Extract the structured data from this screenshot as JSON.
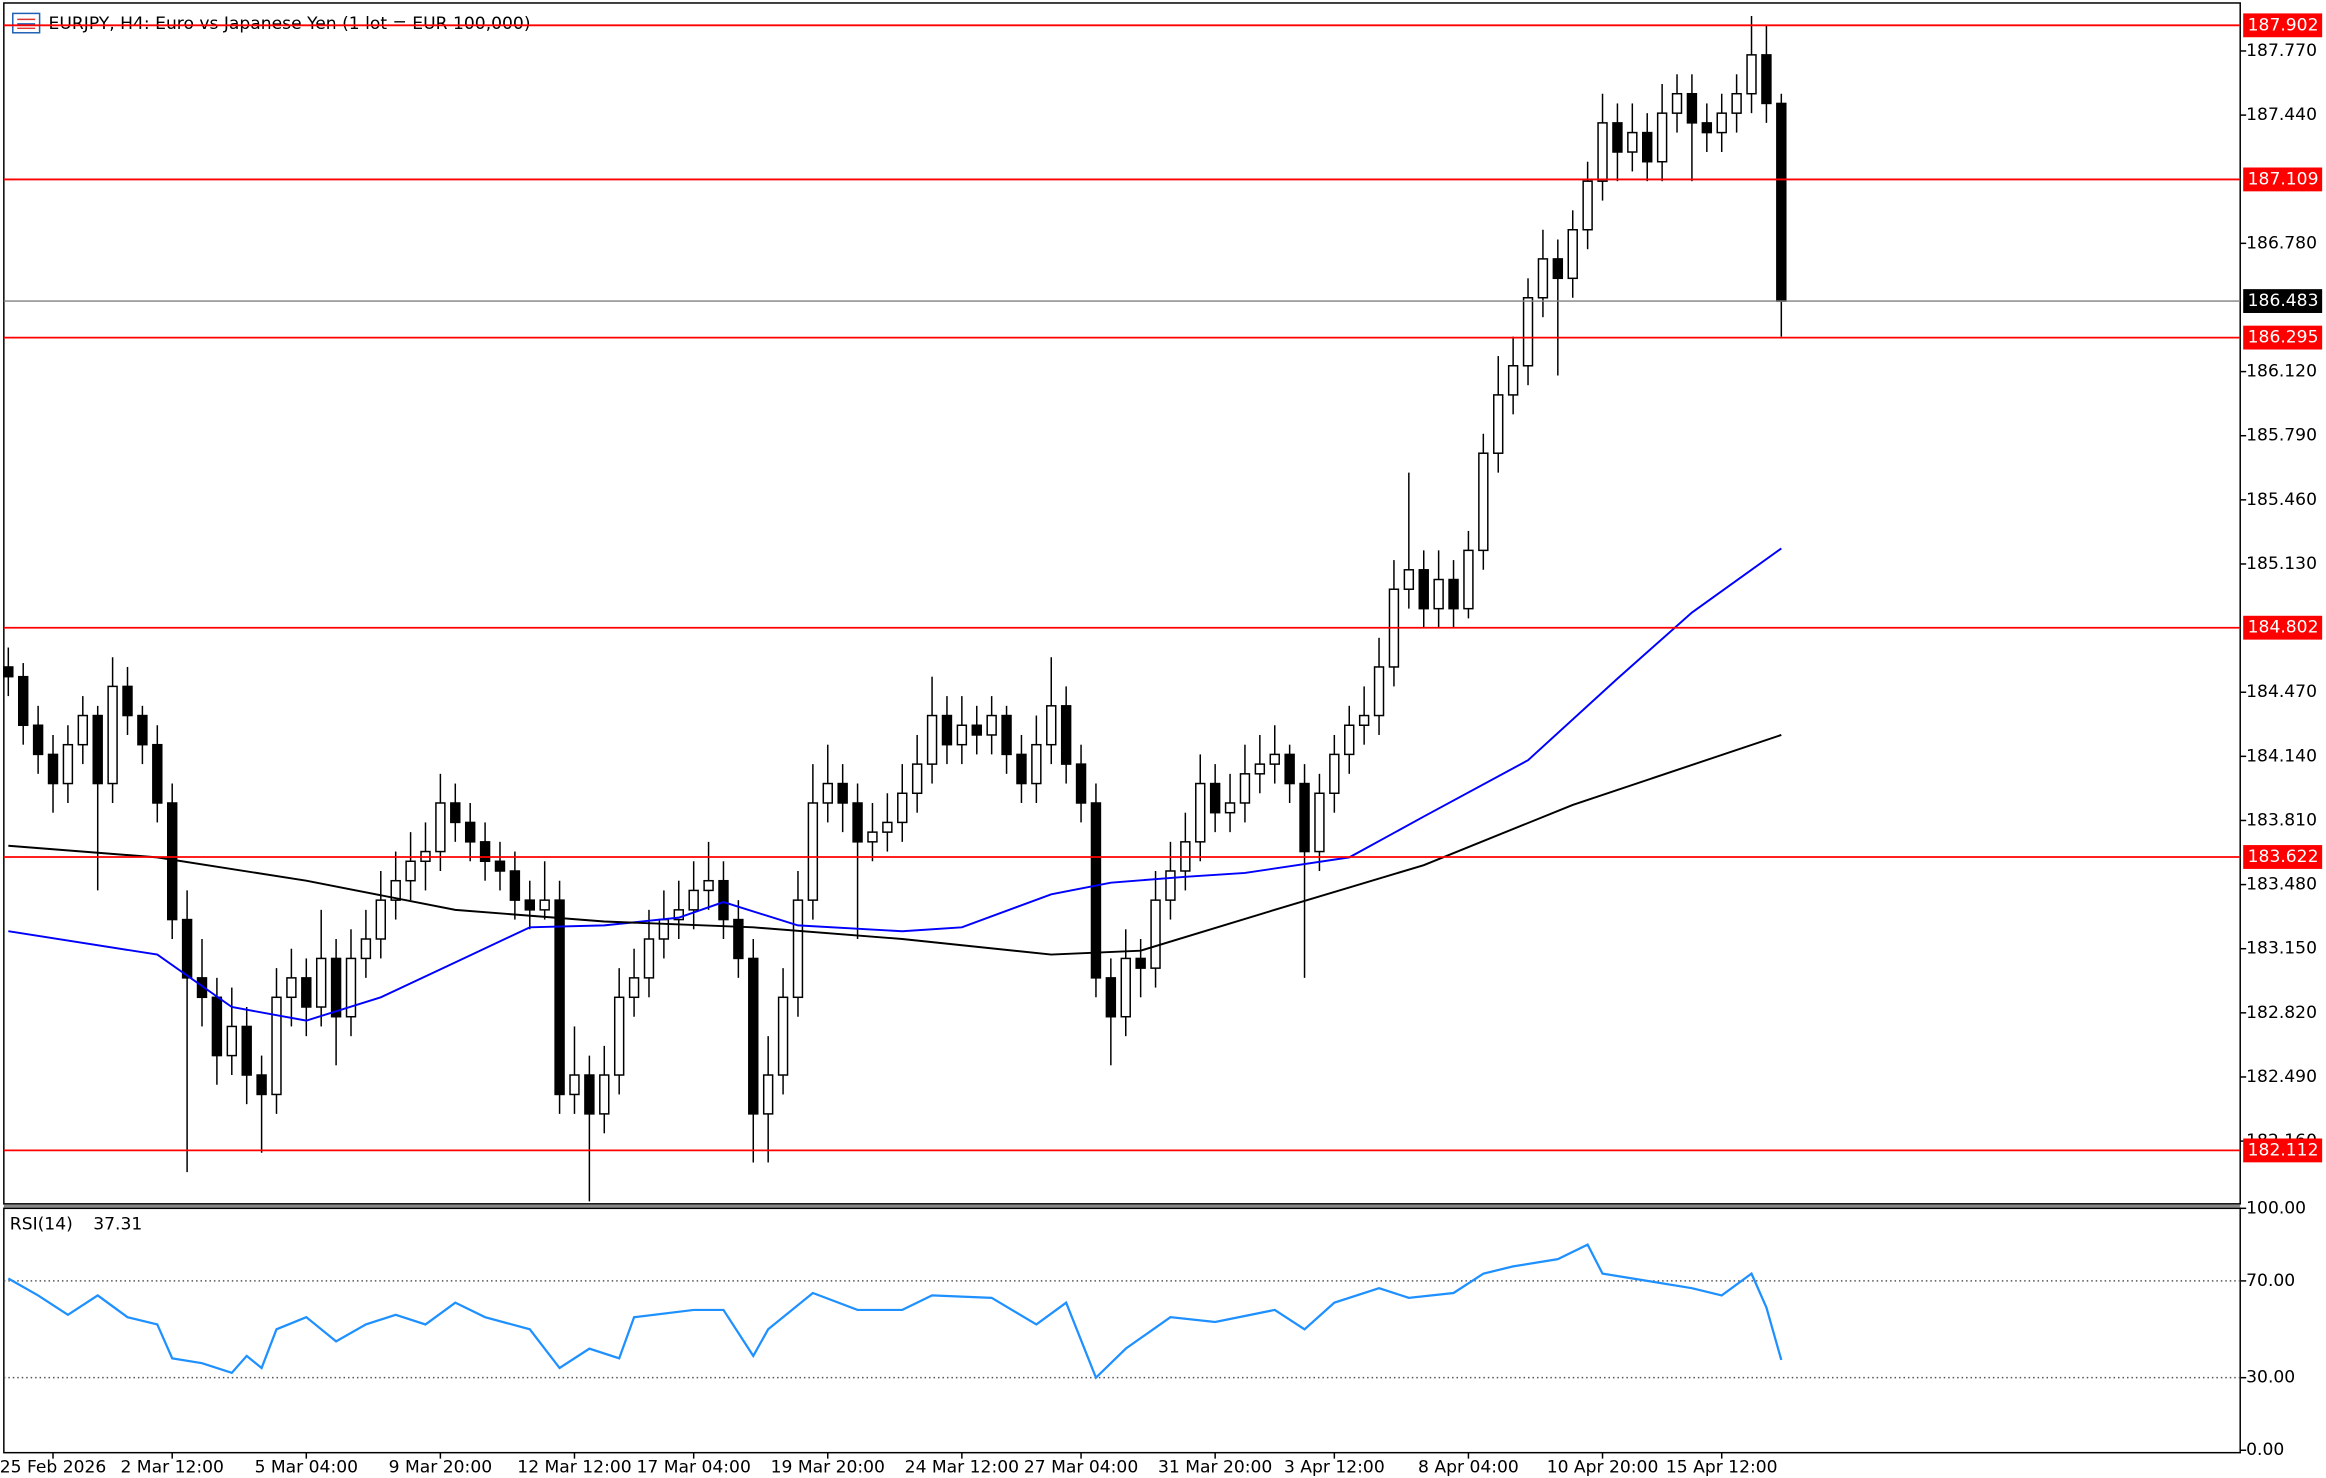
{
  "chart_data": [
    {
      "type": "candlestick",
      "title": "EURJPY, H4:  Euro vs Japanese Yen (1 lot = EUR 100,000)",
      "ylim": [
        181.837,
        188.017
      ],
      "yticks": [
        {
          "value": 187.77,
          "label": "187.770"
        },
        {
          "value": 187.44,
          "label": "187.440"
        },
        {
          "value": 186.78,
          "label": "186.780"
        },
        {
          "value": 186.12,
          "label": "186.120"
        },
        {
          "value": 185.79,
          "label": "185.790"
        },
        {
          "value": 185.46,
          "label": "185.460"
        },
        {
          "value": 185.13,
          "label": "185.130"
        },
        {
          "value": 184.47,
          "label": "184.470"
        },
        {
          "value": 184.14,
          "label": "184.140"
        },
        {
          "value": 183.81,
          "label": "183.810"
        },
        {
          "value": 183.48,
          "label": "183.480"
        },
        {
          "value": 183.15,
          "label": "183.150"
        },
        {
          "value": 182.82,
          "label": "182.820"
        },
        {
          "value": 182.49,
          "label": "182.490"
        },
        {
          "value": 182.16,
          "label": "182.160"
        }
      ],
      "xticks": [
        {
          "value": 3,
          "label": "25 Feb 2026"
        },
        {
          "value": 11,
          "label": "2 Mar 12:00"
        },
        {
          "value": 20,
          "label": "5 Mar 04:00"
        },
        {
          "value": 29,
          "label": "9 Mar 20:00"
        },
        {
          "value": 38,
          "label": "12 Mar 12:00"
        },
        {
          "value": 46,
          "label": "17 Mar 04:00"
        },
        {
          "value": 55,
          "label": "19 Mar 20:00"
        },
        {
          "value": 64,
          "label": "24 Mar 12:00"
        },
        {
          "value": 72,
          "label": "27 Mar 04:00"
        },
        {
          "value": 81,
          "label": "31 Mar 20:00"
        },
        {
          "value": 89,
          "label": "3 Apr 12:00"
        },
        {
          "value": 98,
          "label": "8 Apr 04:00"
        },
        {
          "value": 107,
          "label": "10 Apr 20:00"
        },
        {
          "value": 115,
          "label": "15 Apr 12:00"
        }
      ],
      "up_color": "#ffffff",
      "down_color": "#000000",
      "candles": [
        [
          184.6,
          184.7,
          184.45,
          184.55
        ],
        [
          184.55,
          184.62,
          184.2,
          184.3
        ],
        [
          184.3,
          184.4,
          184.05,
          184.15
        ],
        [
          184.15,
          184.25,
          183.85,
          184.0
        ],
        [
          184.0,
          184.3,
          183.9,
          184.2
        ],
        [
          184.2,
          184.45,
          184.1,
          184.35
        ],
        [
          184.35,
          184.4,
          183.45,
          184.0
        ],
        [
          184.0,
          184.65,
          183.9,
          184.5
        ],
        [
          184.5,
          184.6,
          184.25,
          184.35
        ],
        [
          184.35,
          184.4,
          184.1,
          184.2
        ],
        [
          184.2,
          184.3,
          183.8,
          183.9
        ],
        [
          183.9,
          184.0,
          183.2,
          183.3
        ],
        [
          183.3,
          183.45,
          182.0,
          183.0
        ],
        [
          183.0,
          183.2,
          182.75,
          182.9
        ],
        [
          182.9,
          183.0,
          182.45,
          182.6
        ],
        [
          182.6,
          182.95,
          182.5,
          182.75
        ],
        [
          182.75,
          182.85,
          182.35,
          182.5
        ],
        [
          182.5,
          182.6,
          182.1,
          182.4
        ],
        [
          182.4,
          183.05,
          182.3,
          182.9
        ],
        [
          182.9,
          183.15,
          182.75,
          183.0
        ],
        [
          183.0,
          183.1,
          182.7,
          182.85
        ],
        [
          182.85,
          183.35,
          182.75,
          183.1
        ],
        [
          183.1,
          183.2,
          182.55,
          182.8
        ],
        [
          182.8,
          183.25,
          182.7,
          183.1
        ],
        [
          183.1,
          183.35,
          183.0,
          183.2
        ],
        [
          183.2,
          183.55,
          183.1,
          183.4
        ],
        [
          183.4,
          183.65,
          183.3,
          183.5
        ],
        [
          183.5,
          183.75,
          183.4,
          183.6
        ],
        [
          183.6,
          183.8,
          183.45,
          183.65
        ],
        [
          183.65,
          184.05,
          183.55,
          183.9
        ],
        [
          183.9,
          184.0,
          183.7,
          183.8
        ],
        [
          183.8,
          183.9,
          183.6,
          183.7
        ],
        [
          183.7,
          183.8,
          183.5,
          183.6
        ],
        [
          183.6,
          183.7,
          183.45,
          183.55
        ],
        [
          183.55,
          183.65,
          183.3,
          183.4
        ],
        [
          183.4,
          183.5,
          183.25,
          183.35
        ],
        [
          183.35,
          183.6,
          183.3,
          183.4
        ],
        [
          183.4,
          183.5,
          182.3,
          182.4
        ],
        [
          182.4,
          182.75,
          182.3,
          182.5
        ],
        [
          182.5,
          182.6,
          181.85,
          182.3
        ],
        [
          182.3,
          182.65,
          182.2,
          182.5
        ],
        [
          182.5,
          183.05,
          182.4,
          182.9
        ],
        [
          182.9,
          183.15,
          182.8,
          183.0
        ],
        [
          183.0,
          183.35,
          182.9,
          183.2
        ],
        [
          183.2,
          183.45,
          183.1,
          183.3
        ],
        [
          183.3,
          183.5,
          183.2,
          183.35
        ],
        [
          183.35,
          183.6,
          183.25,
          183.45
        ],
        [
          183.45,
          183.7,
          183.35,
          183.5
        ],
        [
          183.5,
          183.6,
          183.2,
          183.3
        ],
        [
          183.3,
          183.4,
          183.0,
          183.1
        ],
        [
          183.1,
          183.2,
          182.05,
          182.3
        ],
        [
          182.3,
          182.7,
          182.05,
          182.5
        ],
        [
          182.5,
          183.05,
          182.4,
          182.9
        ],
        [
          182.9,
          183.55,
          182.8,
          183.4
        ],
        [
          183.4,
          184.1,
          183.3,
          183.9
        ],
        [
          183.9,
          184.2,
          183.8,
          184.0
        ],
        [
          184.0,
          184.1,
          183.75,
          183.9
        ],
        [
          183.9,
          184.0,
          183.2,
          183.7
        ],
        [
          183.7,
          183.9,
          183.6,
          183.75
        ],
        [
          183.75,
          183.95,
          183.65,
          183.8
        ],
        [
          183.8,
          184.1,
          183.7,
          183.95
        ],
        [
          183.95,
          184.25,
          183.85,
          184.1
        ],
        [
          184.1,
          184.55,
          184.0,
          184.35
        ],
        [
          184.35,
          184.45,
          184.1,
          184.2
        ],
        [
          184.2,
          184.45,
          184.1,
          184.3
        ],
        [
          184.3,
          184.4,
          184.15,
          184.25
        ],
        [
          184.25,
          184.45,
          184.15,
          184.35
        ],
        [
          184.35,
          184.4,
          184.05,
          184.15
        ],
        [
          184.15,
          184.25,
          183.9,
          184.0
        ],
        [
          184.0,
          184.35,
          183.9,
          184.2
        ],
        [
          184.2,
          184.65,
          184.1,
          184.4
        ],
        [
          184.4,
          184.5,
          184.0,
          184.1
        ],
        [
          184.1,
          184.2,
          183.8,
          183.9
        ],
        [
          183.9,
          184.0,
          182.9,
          183.0
        ],
        [
          183.0,
          183.1,
          182.55,
          182.8
        ],
        [
          182.8,
          183.25,
          182.7,
          183.1
        ],
        [
          183.1,
          183.2,
          182.9,
          183.05
        ],
        [
          183.05,
          183.55,
          182.95,
          183.4
        ],
        [
          183.4,
          183.7,
          183.3,
          183.55
        ],
        [
          183.55,
          183.85,
          183.45,
          183.7
        ],
        [
          183.7,
          184.15,
          183.6,
          184.0
        ],
        [
          184.0,
          184.1,
          183.75,
          183.85
        ],
        [
          183.85,
          184.05,
          183.75,
          183.9
        ],
        [
          183.9,
          184.2,
          183.8,
          184.05
        ],
        [
          184.05,
          184.25,
          183.95,
          184.1
        ],
        [
          184.1,
          184.3,
          184.0,
          184.15
        ],
        [
          184.15,
          184.2,
          183.9,
          184.0
        ],
        [
          184.0,
          184.1,
          183.0,
          183.65
        ],
        [
          183.65,
          184.05,
          183.55,
          183.95
        ],
        [
          183.95,
          184.25,
          183.85,
          184.15
        ],
        [
          184.15,
          184.4,
          184.05,
          184.3
        ],
        [
          184.3,
          184.5,
          184.2,
          184.35
        ],
        [
          184.35,
          184.75,
          184.25,
          184.6
        ],
        [
          184.6,
          185.15,
          184.5,
          185.0
        ],
        [
          185.0,
          185.6,
          184.9,
          185.1
        ],
        [
          185.1,
          185.2,
          184.8,
          184.9
        ],
        [
          184.9,
          185.2,
          184.8,
          185.05
        ],
        [
          185.05,
          185.15,
          184.8,
          184.9
        ],
        [
          184.9,
          185.3,
          184.85,
          185.2
        ],
        [
          185.2,
          185.8,
          185.1,
          185.7
        ],
        [
          185.7,
          186.2,
          185.6,
          186.0
        ],
        [
          186.0,
          186.3,
          185.9,
          186.15
        ],
        [
          186.15,
          186.6,
          186.05,
          186.5
        ],
        [
          186.5,
          186.85,
          186.4,
          186.7
        ],
        [
          186.7,
          186.8,
          186.1,
          186.6
        ],
        [
          186.6,
          186.95,
          186.5,
          186.85
        ],
        [
          186.85,
          187.2,
          186.75,
          187.1
        ],
        [
          187.1,
          187.55,
          187.0,
          187.4
        ],
        [
          187.4,
          187.5,
          187.1,
          187.25
        ],
        [
          187.25,
          187.5,
          187.15,
          187.35
        ],
        [
          187.35,
          187.45,
          187.1,
          187.2
        ],
        [
          187.2,
          187.6,
          187.1,
          187.45
        ],
        [
          187.45,
          187.65,
          187.35,
          187.55
        ],
        [
          187.55,
          187.65,
          187.1,
          187.4
        ],
        [
          187.4,
          187.5,
          187.25,
          187.35
        ],
        [
          187.35,
          187.55,
          187.25,
          187.45
        ],
        [
          187.45,
          187.65,
          187.35,
          187.55
        ],
        [
          187.55,
          187.95,
          187.45,
          187.75
        ],
        [
          187.75,
          187.9,
          187.4,
          187.5
        ],
        [
          187.5,
          187.55,
          186.3,
          186.483
        ]
      ],
      "series": [
        {
          "color": "#0000ff",
          "x": [
            0,
            10,
            15,
            20,
            25,
            30,
            35,
            40,
            45,
            48,
            53,
            60,
            64,
            70,
            74,
            79,
            83,
            90,
            95,
            102,
            108,
            113,
            119
          ],
          "values": [
            183.24,
            183.12,
            182.85,
            182.78,
            182.9,
            183.08,
            183.26,
            183.27,
            183.31,
            183.39,
            183.27,
            183.24,
            183.26,
            183.43,
            183.49,
            183.52,
            183.54,
            183.62,
            183.83,
            184.12,
            184.54,
            184.88,
            185.21
          ]
        },
        {
          "color": "#000000",
          "x": [
            0,
            10,
            20,
            30,
            40,
            50,
            60,
            70,
            76,
            85,
            95,
            105,
            119
          ],
          "values": [
            183.68,
            183.62,
            183.5,
            183.35,
            183.29,
            183.26,
            183.2,
            183.12,
            183.14,
            183.35,
            183.58,
            183.89,
            184.25
          ]
        }
      ],
      "levels": [
        {
          "value": 187.902,
          "color": "#ff0000"
        },
        {
          "value": 187.109,
          "color": "#ff0000"
        },
        {
          "value": 186.295,
          "color": "#ff0000"
        },
        {
          "value": 184.802,
          "color": "#ff0000"
        },
        {
          "value": 183.622,
          "color": "#ff0000"
        },
        {
          "value": 182.112,
          "color": "#ff0000"
        }
      ],
      "current": {
        "value": 186.483,
        "color": "#000000",
        "line_color": "#808080"
      }
    },
    {
      "type": "line",
      "title": "RSI(14)",
      "current": 37.31,
      "ylim": [
        -1,
        100
      ],
      "yticks": [
        {
          "value": 100,
          "label": "100.00"
        },
        {
          "value": 70,
          "label": "70.00"
        },
        {
          "value": 30,
          "label": "30.00"
        },
        {
          "value": 0,
          "label": "0.00"
        }
      ],
      "levels": [
        70,
        30
      ],
      "series": [
        {
          "color": "#1e90ff",
          "x": [
            0,
            2,
            4,
            6,
            8,
            10,
            11,
            13,
            15,
            16,
            17,
            18,
            20,
            22,
            24,
            26,
            28,
            30,
            32,
            35,
            37,
            39,
            41,
            42,
            46,
            48,
            50,
            51,
            54,
            57,
            60,
            62,
            66,
            69,
            71,
            73,
            75,
            78,
            81,
            85,
            87,
            89,
            92,
            94,
            97,
            99,
            101,
            104,
            106,
            107,
            110,
            113,
            115,
            117,
            118,
            119
          ],
          "values": [
            71,
            64,
            56,
            64,
            55,
            52,
            38,
            36,
            32,
            39,
            34,
            50,
            55,
            45,
            52,
            56,
            52,
            61,
            55,
            50,
            34,
            42,
            38,
            55,
            58,
            58,
            39,
            50,
            65,
            58,
            58,
            64,
            63,
            52,
            61,
            30,
            42,
            55,
            53,
            58,
            50,
            61,
            67,
            63,
            65,
            73,
            76,
            79,
            85,
            73,
            70,
            67,
            64,
            73,
            59,
            37.31
          ]
        }
      ]
    }
  ]
}
